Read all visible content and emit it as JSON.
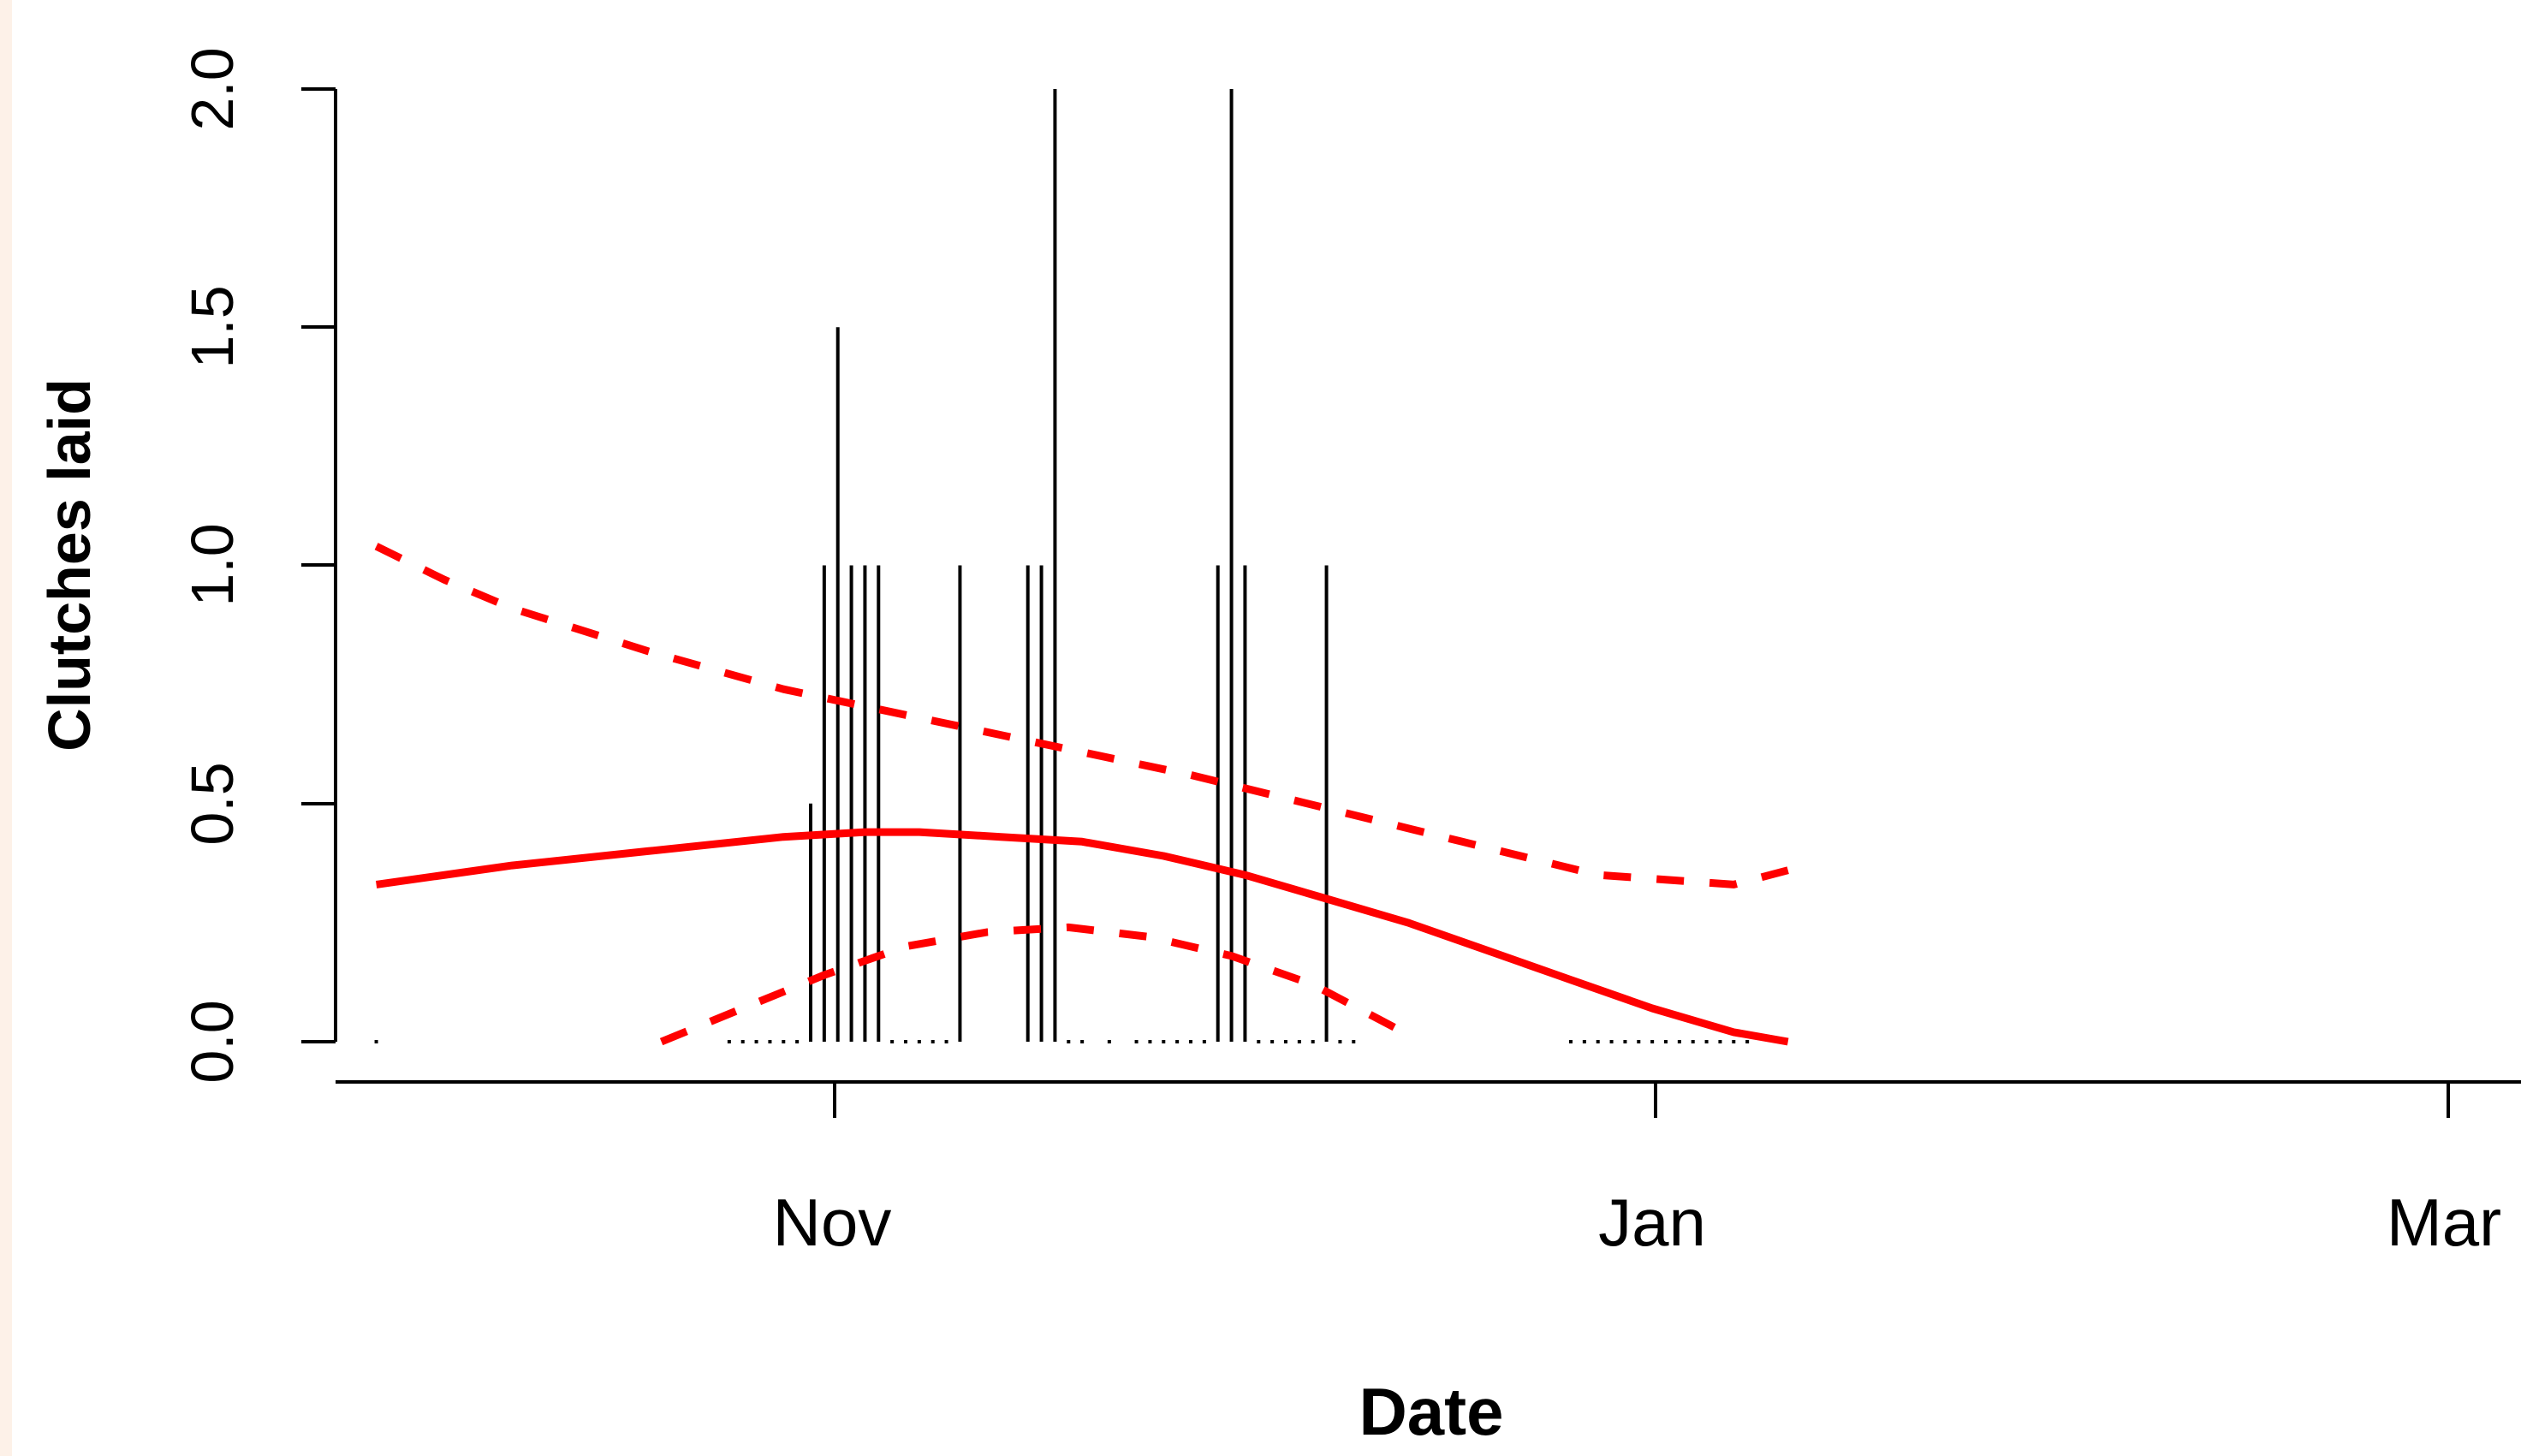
{
  "chart_data": {
    "type": "bar",
    "xlabel": "Date",
    "ylabel": "Clutches laid",
    "x_ticks": [
      "Nov",
      "Jan",
      "Mar"
    ],
    "y_ticks": [
      "0.0",
      "0.5",
      "1.0",
      "1.5",
      "2.0"
    ],
    "ylim": [
      0,
      2
    ],
    "xlim": [
      "2014-10-02",
      "2015-03-12"
    ],
    "grid": false,
    "legend": "none",
    "colors": {
      "bars": "#000000",
      "fit": "#ff0000",
      "ci": "#ff0000"
    },
    "bars": {
      "name": "",
      "x": [
        "2014-10-05",
        "2014-11-06",
        "2014-11-07",
        "2014-11-08",
        "2014-11-09",
        "2014-11-10",
        "2014-11-11",
        "2014-11-17",
        "2014-11-22",
        "2014-11-23",
        "2014-11-24",
        "2014-12-06",
        "2014-12-07",
        "2014-12-08",
        "2014-12-14"
      ],
      "values": [
        0,
        0.5,
        1,
        1.5,
        1,
        1,
        1,
        1,
        1,
        1,
        2,
        1,
        2,
        1,
        1
      ]
    },
    "zero_days": {
      "x": [
        "2014-10-31",
        "2014-11-01",
        "2014-11-02",
        "2014-11-03",
        "2014-11-04",
        "2014-11-05",
        "2014-11-12",
        "2014-11-13",
        "2014-11-14",
        "2014-11-15",
        "2014-11-16",
        "2014-11-25",
        "2014-11-26",
        "2014-11-28",
        "2014-11-30",
        "2014-12-01",
        "2014-12-02",
        "2014-12-03",
        "2014-12-04",
        "2014-12-05",
        "2014-12-09",
        "2014-12-10",
        "2014-12-11",
        "2014-12-12",
        "2014-12-13",
        "2014-12-15",
        "2014-12-16",
        "2015-01-01",
        "2015-01-02",
        "2015-01-03",
        "2015-01-04",
        "2015-01-05",
        "2015-01-06",
        "2015-01-07",
        "2015-01-08",
        "2015-01-09",
        "2015-01-10",
        "2015-01-11",
        "2015-01-12",
        "2015-01-13",
        "2015-01-14"
      ]
    },
    "fit": {
      "x": [
        "2014-10-05",
        "2014-10-15",
        "2014-10-25",
        "2014-11-04",
        "2014-11-10",
        "2014-11-14",
        "2014-11-20",
        "2014-11-26",
        "2014-12-02",
        "2014-12-08",
        "2014-12-14",
        "2014-12-20",
        "2014-12-26",
        "2015-01-01",
        "2015-01-07",
        "2015-01-13",
        "2015-01-17"
      ],
      "values": [
        0.33,
        0.37,
        0.4,
        0.43,
        0.44,
        0.44,
        0.43,
        0.42,
        0.39,
        0.35,
        0.3,
        0.25,
        0.19,
        0.13,
        0.07,
        0.02,
        0.0
      ]
    },
    "ci_upper": {
      "x": [
        "2014-10-05",
        "2014-10-10",
        "2014-10-15",
        "2014-10-25",
        "2014-11-04",
        "2014-11-14",
        "2014-11-24",
        "2014-12-04",
        "2014-12-14",
        "2014-12-24",
        "2015-01-03",
        "2015-01-13",
        "2015-01-17"
      ],
      "values": [
        1.04,
        0.97,
        0.91,
        0.82,
        0.74,
        0.68,
        0.62,
        0.56,
        0.49,
        0.42,
        0.35,
        0.33,
        0.36
      ]
    },
    "ci_lower": {
      "x": [
        "2014-10-26",
        "2014-11-01",
        "2014-11-07",
        "2014-11-13",
        "2014-11-19",
        "2014-11-25",
        "2014-12-01",
        "2014-12-07",
        "2014-12-13",
        "2014-12-19"
      ],
      "values": [
        0.0,
        0.07,
        0.14,
        0.2,
        0.23,
        0.24,
        0.22,
        0.18,
        0.12,
        0.03
      ]
    }
  }
}
